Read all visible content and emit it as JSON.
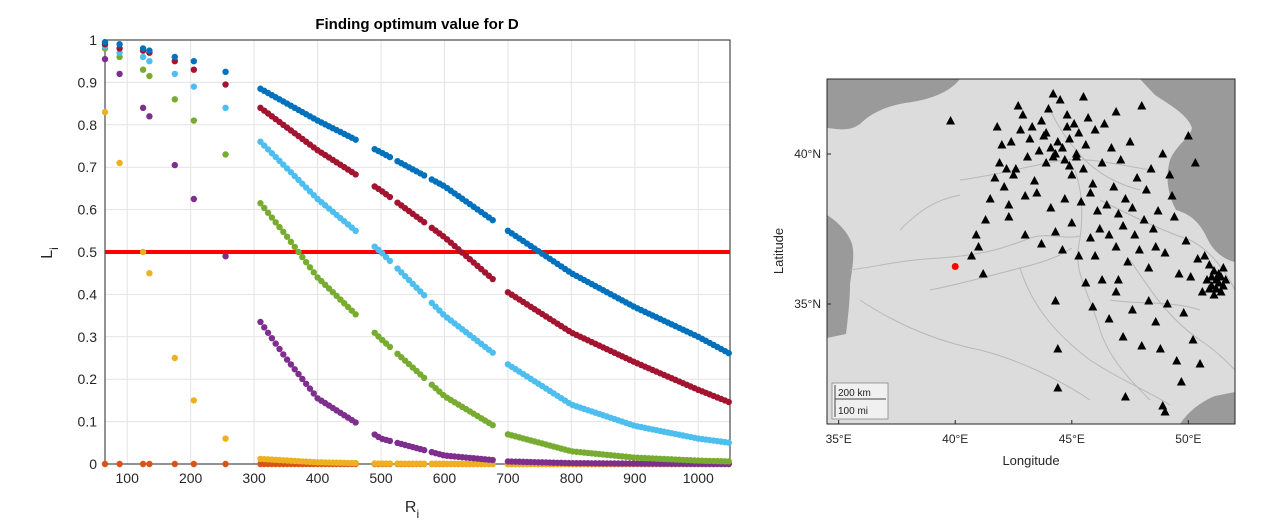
{
  "chart_data": [
    {
      "type": "scatter",
      "title": "Finding optimum value for D",
      "xlabel": "R",
      "xlabel_sub": "i",
      "ylabel": "L",
      "ylabel_sub": "i",
      "xlim": [
        65,
        1050
      ],
      "ylim": [
        0,
        1
      ],
      "xticks": [
        100,
        200,
        300,
        400,
        500,
        600,
        700,
        800,
        900,
        1000
      ],
      "yticks": [
        0,
        0.1,
        0.2,
        0.3,
        0.4,
        0.5,
        0.6,
        0.7,
        0.8,
        0.9,
        1
      ],
      "ytick_labels": [
        "0",
        "0.1",
        "0.2",
        "0.3",
        "0.4",
        "0.5",
        "0.6",
        "0.7",
        "0.8",
        "0.9",
        "1"
      ],
      "grid": true,
      "threshold_line": {
        "y": 0.5,
        "color": "#ff0000"
      },
      "sparse_x": [
        65,
        88,
        125,
        135,
        175,
        205,
        255
      ],
      "dense_range": [
        310,
        1050
      ],
      "series": [
        {
          "color": "#0072bd",
          "sparse_y": [
            0.995,
            0.99,
            0.98,
            0.975,
            0.96,
            0.95,
            0.925
          ],
          "curve": [
            [
              310,
              0.885
            ],
            [
              400,
              0.81
            ],
            [
              500,
              0.735
            ],
            [
              600,
              0.655
            ],
            [
              700,
              0.55
            ],
            [
              800,
              0.45
            ],
            [
              900,
              0.37
            ],
            [
              1000,
              0.3
            ],
            [
              1050,
              0.26
            ]
          ]
        },
        {
          "color": "#a2142f",
          "sparse_y": [
            0.99,
            0.98,
            0.975,
            0.97,
            0.95,
            0.93,
            0.895
          ],
          "curve": [
            [
              310,
              0.84
            ],
            [
              400,
              0.74
            ],
            [
              500,
              0.645
            ],
            [
              600,
              0.535
            ],
            [
              700,
              0.405
            ],
            [
              800,
              0.31
            ],
            [
              900,
              0.24
            ],
            [
              1000,
              0.175
            ],
            [
              1050,
              0.145
            ]
          ]
        },
        {
          "color": "#4dbeee",
          "sparse_y": [
            0.985,
            0.97,
            0.96,
            0.95,
            0.92,
            0.89,
            0.84
          ],
          "curve": [
            [
              310,
              0.76
            ],
            [
              350,
              0.7
            ],
            [
              400,
              0.625
            ],
            [
              500,
              0.5
            ],
            [
              600,
              0.35
            ],
            [
              700,
              0.235
            ],
            [
              800,
              0.14
            ],
            [
              900,
              0.09
            ],
            [
              1000,
              0.06
            ],
            [
              1050,
              0.05
            ]
          ]
        },
        {
          "color": "#77ac30",
          "sparse_y": [
            0.98,
            0.96,
            0.93,
            0.915,
            0.86,
            0.81,
            0.73
          ],
          "curve": [
            [
              310,
              0.615
            ],
            [
              350,
              0.54
            ],
            [
              400,
              0.44
            ],
            [
              500,
              0.295
            ],
            [
              600,
              0.16
            ],
            [
              700,
              0.07
            ],
            [
              800,
              0.03
            ],
            [
              900,
              0.015
            ],
            [
              1000,
              0.008
            ],
            [
              1050,
              0.006
            ]
          ]
        },
        {
          "color": "#7e2f8e",
          "sparse_y": [
            0.955,
            0.92,
            0.84,
            0.82,
            0.705,
            0.625,
            0.49
          ],
          "curve": [
            [
              310,
              0.335
            ],
            [
              350,
              0.25
            ],
            [
              400,
              0.155
            ],
            [
              500,
              0.06
            ],
            [
              600,
              0.02
            ],
            [
              700,
              0.006
            ],
            [
              800,
              0.002
            ],
            [
              900,
              0.001
            ],
            [
              1050,
              0.0
            ]
          ]
        },
        {
          "color": "#edb120",
          "sparse_y": [
            0.83,
            0.71,
            0.5,
            0.45,
            0.25,
            0.15,
            0.06
          ],
          "curve": [
            [
              310,
              0.012
            ],
            [
              400,
              0.004
            ],
            [
              500,
              0.001
            ],
            [
              700,
              0.0
            ]
          ]
        },
        {
          "color": "#d95319",
          "sparse_y": [
            0.0,
            0.0,
            0.0,
            0.0,
            0.0,
            0.0,
            0.0
          ],
          "curve": [
            [
              310,
              0.0
            ],
            [
              1050,
              0.0
            ]
          ]
        }
      ]
    },
    {
      "type": "scatter",
      "title": "",
      "xlabel": "Longitude",
      "ylabel": "Latitude",
      "xlim": [
        34.5,
        52.0
      ],
      "ylim": [
        31.0,
        42.5
      ],
      "xticks": [
        35,
        40,
        45,
        50
      ],
      "xtick_labels": [
        "35°E",
        "40°E",
        "45°E",
        "50°E"
      ],
      "yticks": [
        35,
        40
      ],
      "ytick_labels": [
        "35°N",
        "40°N"
      ],
      "scale_bar": {
        "km_label": "200 km",
        "mi_label": "100 mi"
      },
      "colors": {
        "land": "#dcdcdc",
        "water": "#9a9a9a",
        "border": "#b8b8b8",
        "marker": "#000000",
        "target": "#ff0000"
      },
      "target": {
        "lon": 40.0,
        "lat": 36.25
      },
      "stations": [
        [
          39.8,
          41.1
        ],
        [
          40.9,
          37.3
        ],
        [
          40.7,
          36.6
        ],
        [
          41.2,
          36.0
        ],
        [
          41.3,
          37.8
        ],
        [
          41.5,
          38.5
        ],
        [
          41.7,
          39.2
        ],
        [
          41.9,
          39.7
        ],
        [
          42.0,
          40.3
        ],
        [
          42.1,
          38.9
        ],
        [
          42.3,
          38.3
        ],
        [
          42.6,
          39.5
        ],
        [
          42.8,
          40.8
        ],
        [
          42.9,
          41.3
        ],
        [
          43.1,
          39.9
        ],
        [
          43.2,
          40.5
        ],
        [
          43.4,
          39.1
        ],
        [
          43.5,
          38.7
        ],
        [
          43.6,
          40.1
        ],
        [
          43.7,
          41.1
        ],
        [
          43.8,
          40.6
        ],
        [
          43.9,
          39.7
        ],
        [
          44.0,
          41.5
        ],
        [
          44.1,
          40.2
        ],
        [
          44.2,
          39.9
        ],
        [
          44.3,
          40.0
        ],
        [
          44.4,
          40.4
        ],
        [
          44.5,
          41.8
        ],
        [
          44.6,
          40.2
        ],
        [
          44.7,
          39.8
        ],
        [
          44.8,
          41.3
        ],
        [
          44.8,
          40.9
        ],
        [
          44.9,
          40.5
        ],
        [
          45.0,
          39.3
        ],
        [
          45.1,
          41.0
        ],
        [
          45.2,
          39.9
        ],
        [
          45.3,
          40.7
        ],
        [
          45.4,
          38.4
        ],
        [
          45.5,
          39.5
        ],
        [
          45.6,
          40.3
        ],
        [
          45.7,
          41.2
        ],
        [
          45.8,
          38.7
        ],
        [
          45.9,
          39.0
        ],
        [
          46.0,
          40.8
        ],
        [
          46.1,
          38.1
        ],
        [
          46.2,
          37.5
        ],
        [
          46.3,
          39.7
        ],
        [
          46.4,
          41.0
        ],
        [
          46.5,
          38.3
        ],
        [
          46.6,
          37.3
        ],
        [
          46.7,
          40.2
        ],
        [
          46.8,
          38.9
        ],
        [
          46.9,
          36.9
        ],
        [
          47.0,
          38.0
        ],
        [
          47.1,
          39.8
        ],
        [
          47.2,
          37.6
        ],
        [
          47.3,
          38.5
        ],
        [
          47.4,
          36.4
        ],
        [
          47.5,
          40.4
        ],
        [
          47.6,
          38.2
        ],
        [
          47.7,
          37.3
        ],
        [
          47.8,
          39.2
        ],
        [
          47.9,
          36.8
        ],
        [
          48.0,
          41.6
        ],
        [
          48.1,
          37.8
        ],
        [
          48.2,
          38.8
        ],
        [
          48.3,
          36.2
        ],
        [
          48.4,
          39.5
        ],
        [
          48.5,
          37.5
        ],
        [
          48.6,
          34.4
        ],
        [
          48.7,
          38.1
        ],
        [
          48.8,
          33.5
        ],
        [
          48.9,
          40.0
        ],
        [
          49.0,
          36.7
        ],
        [
          49.1,
          35.0
        ],
        [
          49.2,
          39.3
        ],
        [
          49.3,
          38.6
        ],
        [
          49.4,
          37.9
        ],
        [
          49.5,
          33.1
        ],
        [
          49.6,
          36.0
        ],
        [
          49.7,
          32.4
        ],
        [
          49.8,
          34.7
        ],
        [
          49.9,
          37.1
        ],
        [
          50.0,
          40.6
        ],
        [
          50.1,
          35.9
        ],
        [
          50.2,
          33.8
        ],
        [
          50.3,
          39.7
        ],
        [
          50.4,
          36.5
        ],
        [
          50.5,
          33.0
        ],
        [
          50.6,
          35.4
        ],
        [
          50.7,
          36.6
        ],
        [
          50.8,
          35.8
        ],
        [
          50.9,
          35.5
        ],
        [
          50.9,
          36.3
        ],
        [
          51.0,
          35.9
        ],
        [
          51.0,
          35.6
        ],
        [
          51.1,
          36.1
        ],
        [
          51.1,
          35.3
        ],
        [
          51.2,
          35.8
        ],
        [
          51.2,
          35.5
        ],
        [
          51.3,
          36.0
        ],
        [
          51.3,
          35.7
        ],
        [
          51.4,
          35.4
        ],
        [
          51.4,
          35.9
        ],
        [
          51.5,
          35.6
        ],
        [
          51.5,
          36.2
        ],
        [
          51.6,
          35.8
        ],
        [
          42.5,
          39.3
        ],
        [
          43.3,
          40.9
        ],
        [
          44.1,
          38.2
        ],
        [
          44.3,
          37.4
        ],
        [
          44.6,
          36.8
        ],
        [
          45.0,
          37.7
        ],
        [
          45.3,
          36.6
        ],
        [
          45.6,
          35.7
        ],
        [
          45.9,
          34.9
        ],
        [
          46.3,
          35.8
        ],
        [
          46.6,
          34.5
        ],
        [
          46.9,
          35.4
        ],
        [
          47.2,
          33.9
        ],
        [
          47.6,
          34.8
        ],
        [
          48.0,
          33.6
        ],
        [
          48.3,
          35.1
        ],
        [
          44.3,
          35.1
        ],
        [
          44.4,
          33.5
        ],
        [
          44.4,
          32.2
        ],
        [
          47.3,
          31.9
        ],
        [
          48.9,
          31.6
        ],
        [
          49.0,
          31.4
        ],
        [
          43.0,
          37.3
        ],
        [
          43.7,
          37.0
        ],
        [
          42.3,
          37.9
        ],
        [
          41.0,
          36.9
        ],
        [
          45.2,
          40.0
        ],
        [
          44.9,
          39.6
        ],
        [
          43.9,
          40.7
        ],
        [
          46.9,
          41.4
        ],
        [
          45.5,
          41.9
        ],
        [
          44.2,
          42.0
        ],
        [
          42.7,
          41.6
        ],
        [
          42.4,
          40.4
        ],
        [
          41.8,
          40.9
        ],
        [
          43.0,
          38.6
        ],
        [
          42.2,
          39.5
        ],
        [
          44.7,
          38.5
        ],
        [
          45.8,
          37.2
        ],
        [
          46.0,
          36.6
        ],
        [
          47.0,
          35.8
        ],
        [
          48.6,
          36.9
        ]
      ]
    }
  ]
}
